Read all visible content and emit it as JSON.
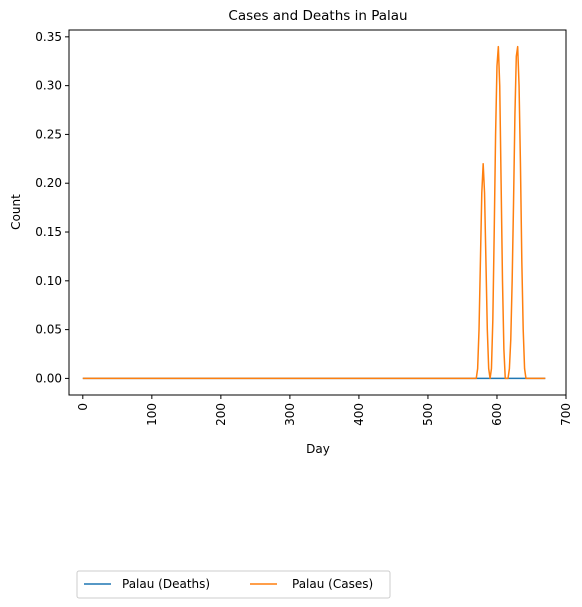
{
  "chart_data": {
    "type": "line",
    "title": "Cases and Deaths in Palau",
    "xlabel": "Day",
    "ylabel": "Count",
    "xlim": [
      -20,
      700
    ],
    "ylim": [
      -0.017,
      0.357
    ],
    "xticks": [
      0,
      100,
      200,
      300,
      400,
      500,
      600,
      700
    ],
    "yticks": [
      0.0,
      0.05,
      0.1,
      0.15,
      0.2,
      0.25,
      0.3,
      0.35
    ],
    "xtick_labels": [
      "0",
      "100",
      "200",
      "300",
      "400",
      "500",
      "600",
      "700"
    ],
    "ytick_labels": [
      "0.00",
      "0.05",
      "0.10",
      "0.15",
      "0.20",
      "0.25",
      "0.30",
      "0.35"
    ],
    "grid": false,
    "legend_placement": "below",
    "series": [
      {
        "name": "Palau (Deaths)",
        "color": "#1f77b4",
        "x": [
          0,
          670
        ],
        "y": [
          0,
          0
        ]
      },
      {
        "name": "Palau (Cases)",
        "color": "#ff7f0e",
        "x": [
          0,
          570,
          572,
          574,
          576,
          578,
          580,
          582,
          584,
          586,
          588,
          590,
          592,
          594,
          596,
          598,
          600,
          602,
          604,
          606,
          608,
          610,
          612,
          614,
          616,
          618,
          620,
          622,
          624,
          626,
          628,
          630,
          632,
          634,
          636,
          638,
          640,
          642,
          644,
          670
        ],
        "y": [
          0,
          0,
          0.01,
          0.05,
          0.12,
          0.19,
          0.22,
          0.19,
          0.12,
          0.05,
          0.01,
          0,
          0.01,
          0.06,
          0.15,
          0.25,
          0.32,
          0.34,
          0.3,
          0.2,
          0.1,
          0.03,
          0,
          0,
          0,
          0.01,
          0.04,
          0.1,
          0.18,
          0.27,
          0.33,
          0.34,
          0.3,
          0.22,
          0.12,
          0.05,
          0.01,
          0,
          0,
          0
        ]
      }
    ]
  }
}
